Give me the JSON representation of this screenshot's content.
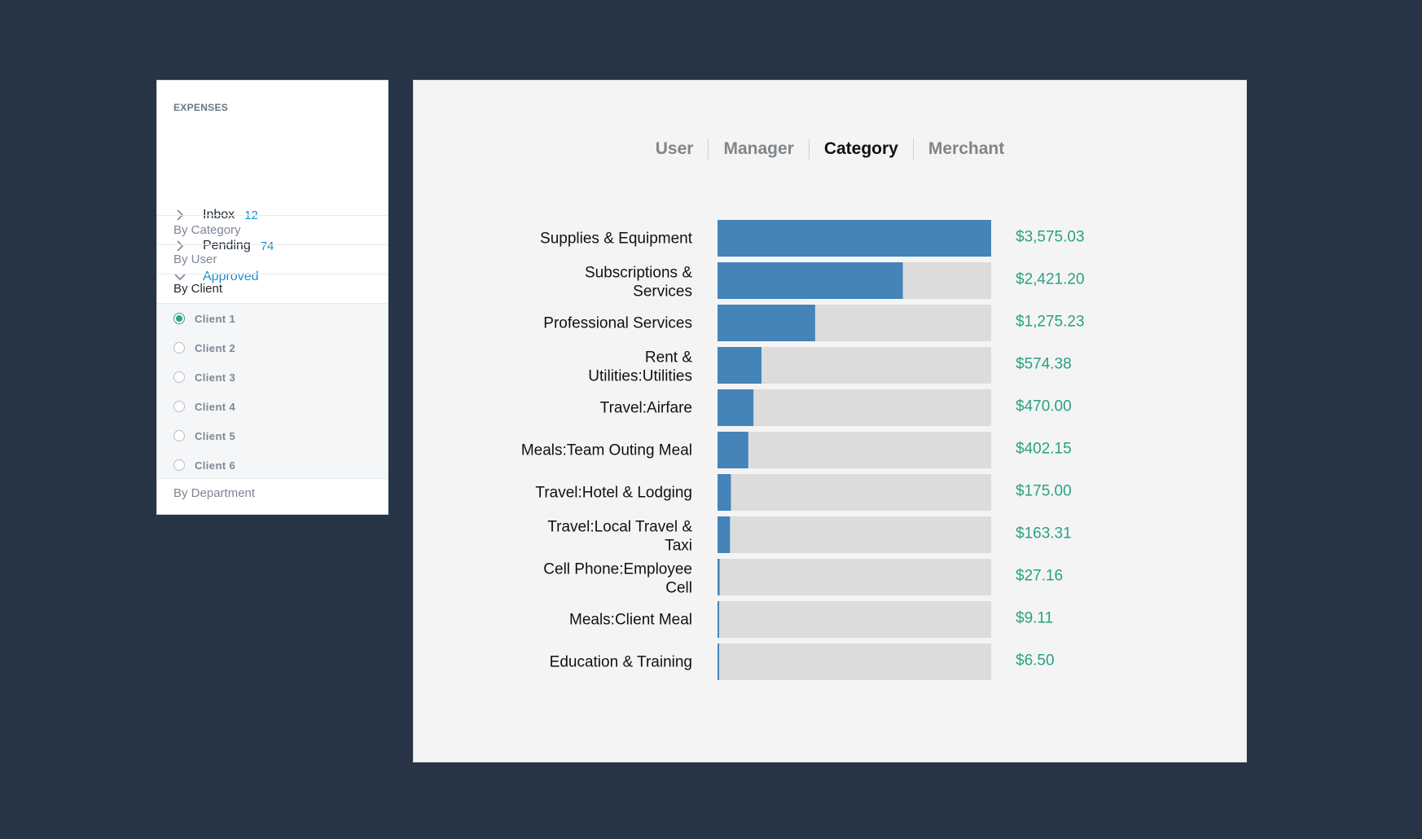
{
  "sidebar": {
    "header": "EXPENSES",
    "items": [
      {
        "label": "Inbox",
        "count": "12",
        "icon": "chevron-right-icon"
      },
      {
        "label": "Pending",
        "count": "74",
        "icon": "chevron-right-icon"
      },
      {
        "label": "Approved",
        "icon": "chevron-down-icon"
      }
    ],
    "groups": [
      "By Category",
      "By User",
      "By Client",
      "By Department"
    ],
    "active_group": "By Client",
    "clients": [
      "Client 1",
      "Client 2",
      "Client 3",
      "Client 4",
      "Client 5",
      "Client 6"
    ],
    "selected_client": "Client 1"
  },
  "tabs": [
    "User",
    "Manager",
    "Category",
    "Merchant"
  ],
  "active_tab": "Category",
  "colors": {
    "bar": "#4584b8",
    "track": "#dcdcdc",
    "value": "#29a184",
    "link": "#1a8fc9",
    "background": "#273446"
  },
  "chart_data": {
    "type": "bar",
    "orientation": "horizontal",
    "categories": [
      "Supplies & Equipment",
      "Subscriptions & Services",
      "Professional Services",
      "Rent & Utilities:Utilities",
      "Travel:Airfare",
      "Meals:Team Outing Meal",
      "Travel:Hotel & Lodging",
      "Travel:Local Travel & Taxi",
      "Cell Phone:Employee Cell",
      "Meals:Client Meal",
      "Education & Training"
    ],
    "values": [
      3575.03,
      2421.2,
      1275.23,
      574.38,
      470.0,
      402.15,
      175.0,
      163.31,
      27.16,
      9.11,
      6.5
    ],
    "value_labels": [
      "$3,575.03",
      "$2,421.20",
      "$1,275.23",
      "$574.38",
      "$470.00",
      "$402.15",
      "$175.00",
      "$163.31",
      "$27.16",
      "$9.11",
      "$6.50"
    ],
    "xlim": [
      0,
      3575.03
    ]
  }
}
